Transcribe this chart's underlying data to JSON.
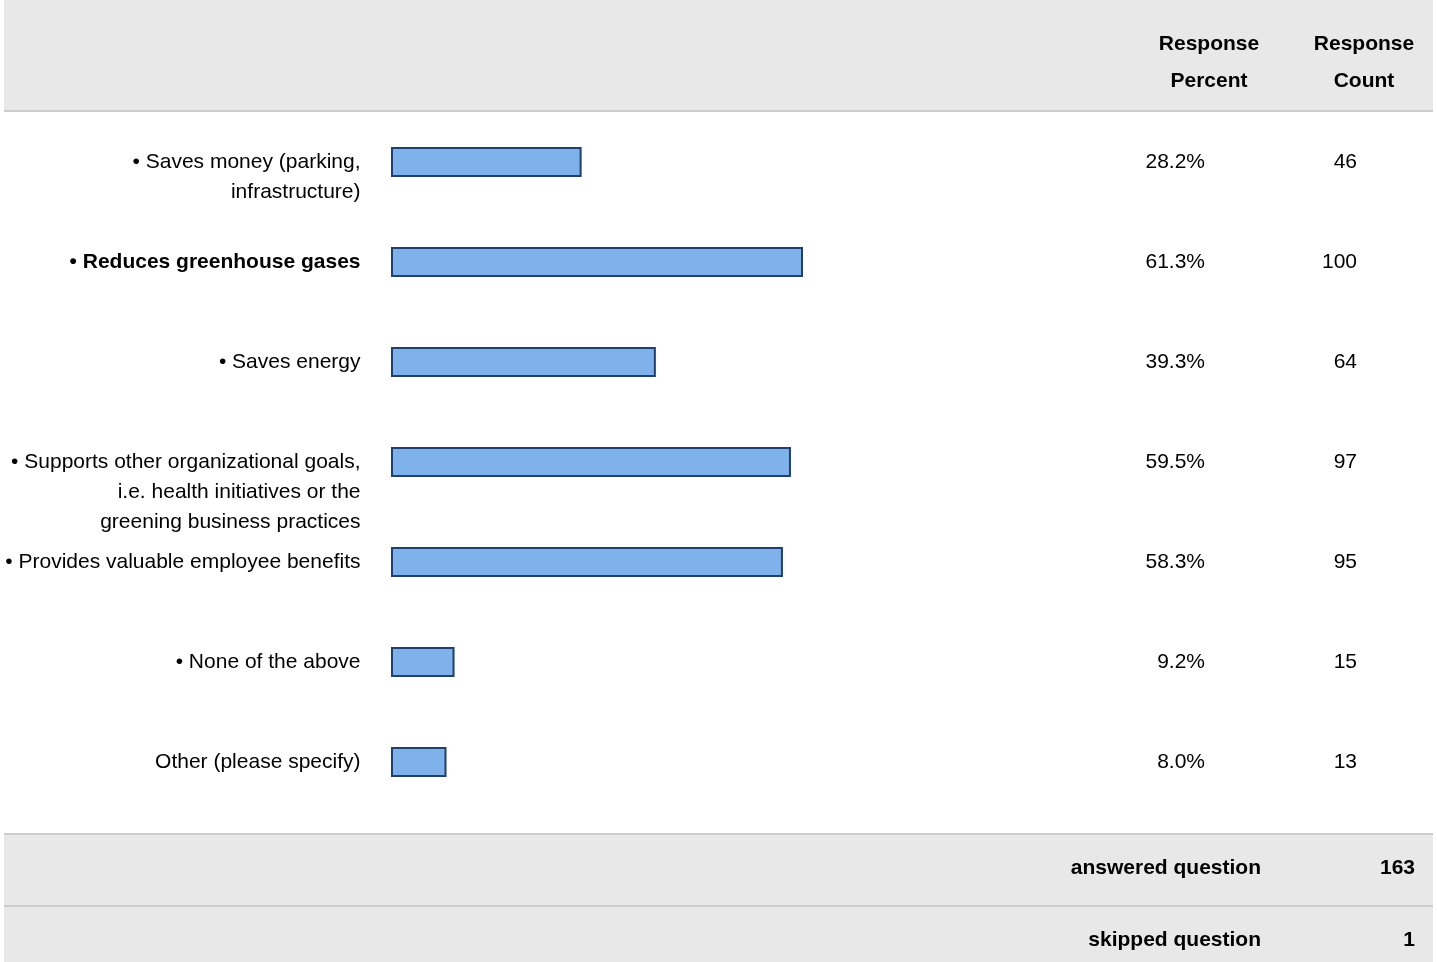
{
  "chart_data": {
    "type": "bar",
    "orientation": "horizontal",
    "color": "#7fb2ea",
    "categories": [
      "• Saves money (parking, infrastructure)",
      "• Reduces greenhouse gases",
      "• Saves energy",
      "• Supports other organizational goals, i.e. health initiatives or the greening business practices",
      "• Provides valuable employee benefits",
      "• None of the above",
      "Other (please specify)"
    ],
    "values": [
      28.2,
      61.3,
      39.3,
      59.5,
      58.3,
      9.2,
      8.0
    ],
    "value_labels": [
      "28.2%",
      "61.3%",
      "39.3%",
      "59.5%",
      "58.3%",
      "9.2%",
      "8.0%"
    ],
    "annotations": [
      "Response Percent",
      "Response Count",
      "46",
      "100",
      "64",
      "97",
      "95",
      "15",
      "13",
      "answered question",
      "163",
      "skipped question",
      "1"
    ]
  }
}
